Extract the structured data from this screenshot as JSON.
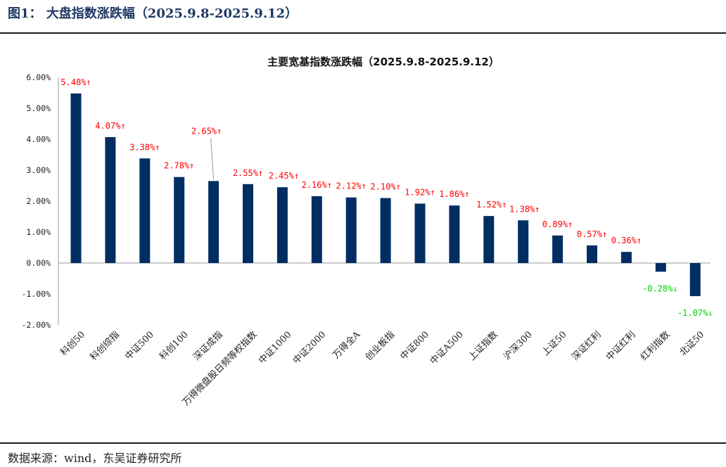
{
  "header": {
    "figure_title": "图1： 大盘指数涨跌幅（2025.9.8-2025.9.12）"
  },
  "footer": {
    "source": "数据来源：wind，东吴证券研究所"
  },
  "colors": {
    "bar": "#002e63",
    "up_label": "#ff0000",
    "down_label": "#00d200",
    "title": "#1f3864"
  },
  "chart_data": {
    "type": "bar",
    "title": "主要宽基指数涨跌幅（2025.9.8-2025.9.12）",
    "ylim": [
      -2.0,
      6.0
    ],
    "yticks": [
      6,
      5,
      4,
      3,
      2,
      1,
      0,
      -1,
      -2
    ],
    "ytick_labels": [
      "6.00%",
      "5.00%",
      "4.00%",
      "3.00%",
      "2.00%",
      "1.00%",
      "0.00%",
      "-1.00%",
      "-2.00%"
    ],
    "categories": [
      "科创50",
      "科创综指",
      "中证500",
      "科创100",
      "深证成指",
      "万得微盘股日频等权指数",
      "中证1000",
      "中证2000",
      "万得全A",
      "创业板指",
      "中证800",
      "中证A500",
      "上证指数",
      "沪深300",
      "上证50",
      "深证红利",
      "中证红利",
      "红利指数",
      "北证50"
    ],
    "values": [
      5.48,
      4.07,
      3.38,
      2.78,
      2.65,
      2.55,
      2.45,
      2.16,
      2.12,
      2.1,
      1.92,
      1.86,
      1.52,
      1.38,
      0.89,
      0.57,
      0.36,
      -0.28,
      -1.07
    ],
    "data_labels": [
      "5.48%↑",
      "4.07%↑",
      "3.38%↑",
      "2.78%↑",
      "2.65%↑",
      "2.55%↑",
      "2.45%↑",
      "2.16%↑",
      "2.12%↑",
      "2.10%↑",
      "1.92%↑",
      "1.86%↑",
      "1.52%↑",
      "1.38%↑",
      "0.89%↑",
      "0.57%↑",
      "0.36%↑",
      "-0.28%↓",
      "-1.07%↓"
    ],
    "xlabel": "",
    "ylabel": "",
    "grid": false,
    "legend": "none"
  }
}
